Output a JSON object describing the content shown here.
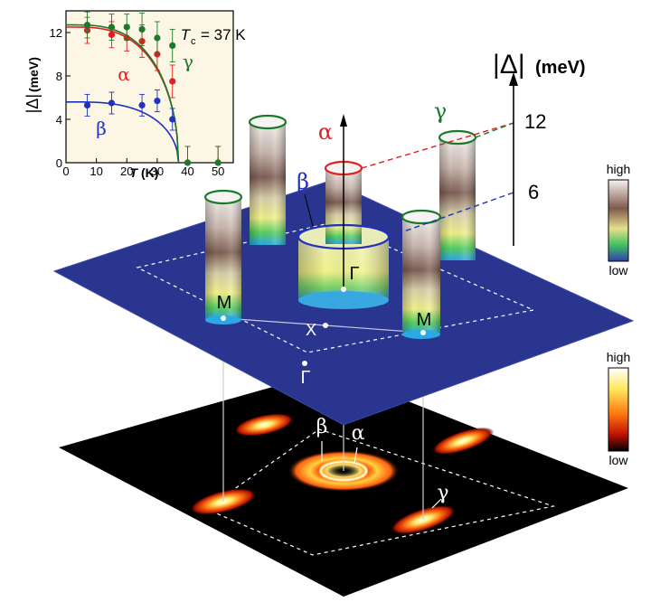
{
  "inset": {
    "title_symbol": "T",
    "title_sub": "c",
    "title_value": "= 37 K",
    "ylabel_bars": "|Δ|",
    "ylabel_unit": "(meV)",
    "xlabel_symbol": "T",
    "xlabel_unit": "(K)",
    "x_ticks": [
      "0",
      "10",
      "20",
      "30",
      "40",
      "50"
    ],
    "y_ticks": [
      "0",
      "4",
      "8",
      "12"
    ],
    "label_alpha": "α",
    "label_beta": "β",
    "label_gamma": "γ"
  },
  "chart_data": {
    "type": "scatter",
    "title": "Tc = 37 K",
    "xlabel": "T (K)",
    "ylabel": "|Δ|(meV)",
    "xlim": [
      0,
      55
    ],
    "ylim": [
      0,
      14
    ],
    "series": [
      {
        "name": "α",
        "color": "#e02020",
        "x": [
          7,
          15,
          20,
          25,
          30,
          35,
          40,
          50
        ],
        "y": [
          12.2,
          11.8,
          11.5,
          11.2,
          10.0,
          7.5,
          0,
          0
        ],
        "yerr": [
          1.2,
          1.2,
          1.2,
          1.5,
          1.5,
          1.5,
          1.5,
          1.5
        ]
      },
      {
        "name": "β",
        "color": "#2030c0",
        "x": [
          7,
          15,
          25,
          30,
          35
        ],
        "y": [
          5.3,
          5.5,
          5.3,
          5.7,
          4.0
        ],
        "yerr": [
          1.0,
          1.0,
          1.0,
          1.0,
          1.0
        ]
      },
      {
        "name": "γ",
        "color": "#1a7a2a",
        "x": [
          7,
          15,
          20,
          25,
          30,
          35,
          40,
          50
        ],
        "y": [
          12.7,
          12.5,
          12.5,
          12.3,
          11.5,
          10.8,
          0,
          0
        ],
        "yerr": [
          1.2,
          1.2,
          1.2,
          1.5,
          1.5,
          1.5,
          1.5,
          1.5
        ]
      }
    ],
    "fits": [
      {
        "name": "α",
        "color": "#e02020",
        "delta0": 12.5,
        "tc": 37
      },
      {
        "name": "β",
        "color": "#2030c0",
        "delta0": 5.6,
        "tc": 37
      },
      {
        "name": "γ",
        "color": "#1a7a2a",
        "delta0": 12.7,
        "tc": 37
      }
    ]
  },
  "main": {
    "axis_label_bars": "|Δ|",
    "axis_label_unit": "(meV)",
    "axis_tick_12": "12",
    "axis_tick_6": "6",
    "label_alpha": "α",
    "label_beta": "β",
    "label_gamma": "γ",
    "label_M_left": "M",
    "label_M_right": "M",
    "label_X": "X",
    "label_Gamma_center": "Γ",
    "label_Gamma_lower": "Γ",
    "label_beta_bottom": "β",
    "label_alpha_bottom": "α",
    "label_gamma_bottom": "γ"
  },
  "colorbar_top": {
    "high": "high",
    "low": "low"
  },
  "colorbar_bottom": {
    "high": "high",
    "low": "low"
  },
  "colors": {
    "alpha": "#e02020",
    "beta": "#2030c0",
    "gamma": "#1a7a2a",
    "plane_blue": "#2a3590",
    "inset_bg": "#fbf7e4"
  }
}
